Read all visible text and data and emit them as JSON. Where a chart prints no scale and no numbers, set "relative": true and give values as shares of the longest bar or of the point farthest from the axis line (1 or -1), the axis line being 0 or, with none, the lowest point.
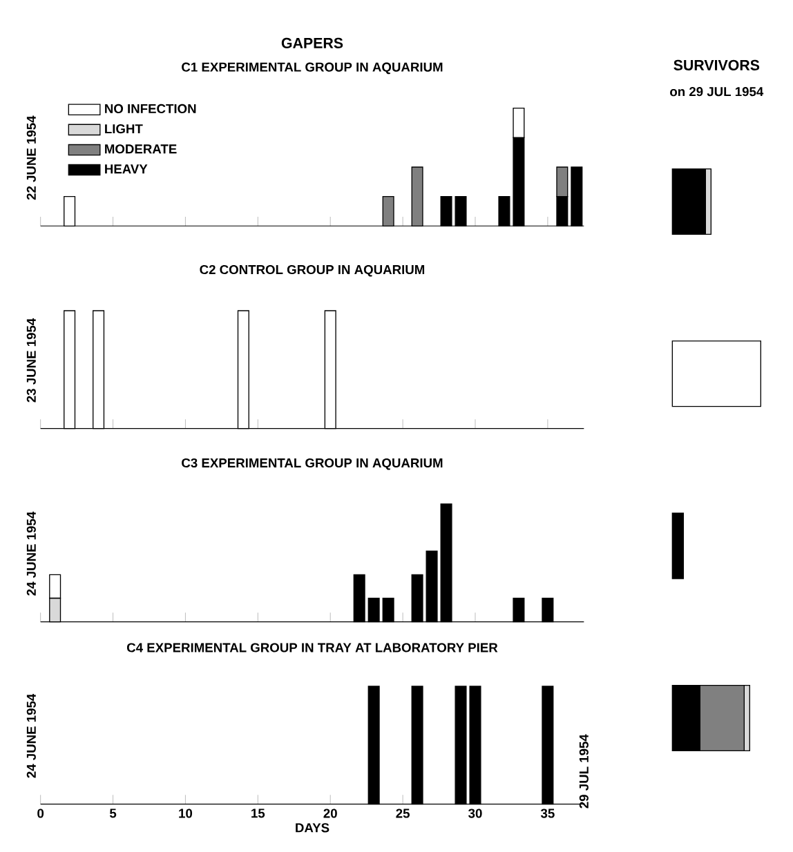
{
  "chart_data": [
    {
      "type": "bar",
      "stacked": true,
      "relative": true,
      "title": "GAPERS",
      "subtitle": "C1 EXPERIMENTAL GROUP IN AQUARIUM",
      "ylabel": "22 JUNE 1954",
      "x": [
        2,
        24,
        26,
        28,
        29,
        32,
        33,
        36,
        37
      ],
      "xlim": [
        0,
        37.5
      ],
      "xticks": [
        0,
        5,
        10,
        15,
        20,
        25,
        30,
        35
      ],
      "tick_labels": false,
      "legend": "top left",
      "series": [
        {
          "name": "HEAVY",
          "color": "#000000",
          "values": [
            null,
            null,
            null,
            0.25,
            0.25,
            0.25,
            0.75,
            0.25,
            0.5
          ]
        },
        {
          "name": "MODERATE",
          "color": "#808080",
          "values": [
            null,
            0.25,
            0.5,
            null,
            null,
            null,
            null,
            0.25,
            null
          ]
        },
        {
          "name": "LIGHT",
          "color": "#d9d9d9",
          "values": [
            null,
            null,
            null,
            null,
            null,
            null,
            null,
            null,
            null
          ]
        },
        {
          "name": "NO INFECTION",
          "color": "#ffffff",
          "values": [
            0.25,
            null,
            null,
            null,
            null,
            null,
            0.25,
            null,
            null
          ]
        }
      ]
    },
    {
      "type": "bar",
      "stacked": true,
      "relative": true,
      "orientation": "horizontal",
      "title": "SURVIVORS",
      "subtitle": "on 29 JUL 1954",
      "categories": [
        null,
        null,
        null,
        null
      ],
      "tick_labels": false,
      "series": [
        {
          "color": "#000000",
          "values": [
            0.375,
            null,
            0.125,
            0.3125
          ]
        },
        {
          "color": "#808080",
          "values": [
            null,
            null,
            null,
            0.5
          ]
        },
        {
          "color": "#d9d9d9",
          "values": [
            0.0625,
            null,
            null,
            0.0625
          ]
        },
        {
          "color": "#ffffff",
          "values": [
            null,
            1,
            null,
            null
          ]
        }
      ]
    },
    {
      "type": "bar",
      "stacked": true,
      "relative": true,
      "title": "C2 CONTROL GROUP IN AQUARIUM",
      "ylabel": "23 JUNE 1954",
      "x": [
        2,
        4,
        14,
        20
      ],
      "xlim": [
        0,
        37.5
      ],
      "xticks": [
        0,
        5,
        10,
        15,
        20,
        25,
        30,
        35
      ],
      "tick_labels": false,
      "series": [
        {
          "color": "#ffffff",
          "values": [
            1,
            1,
            1,
            1
          ]
        }
      ]
    },
    {
      "type": "bar",
      "stacked": true,
      "relative": true,
      "title": "C3 EXPERIMENTAL GROUP IN AQUARIUM",
      "ylabel": "24 JUNE 1954",
      "x": [
        1,
        22,
        23,
        24,
        26,
        27,
        28,
        33,
        35
      ],
      "xlim": [
        0,
        37.5
      ],
      "xticks": [
        0,
        5,
        10,
        15,
        20,
        25,
        30,
        35
      ],
      "tick_labels": false,
      "series": [
        {
          "color": "#000000",
          "values": [
            null,
            0.4,
            0.2,
            0.2,
            0.4,
            0.6,
            1.0,
            0.2,
            0.2
          ]
        },
        {
          "color": "#d9d9d9",
          "values": [
            0.2,
            null,
            null,
            null,
            null,
            null,
            null,
            null,
            null
          ]
        },
        {
          "color": "#ffffff",
          "values": [
            0.2,
            null,
            null,
            null,
            null,
            null,
            null,
            null,
            null
          ]
        }
      ]
    },
    {
      "type": "bar",
      "stacked": true,
      "relative": true,
      "title": "C4 EXPERIMENTAL GROUP IN TRAY AT LABORATORY PIER",
      "ylabel": "24 JUNE 1954",
      "xlabel": "DAYS",
      "x": [
        23,
        26,
        29,
        30,
        35
      ],
      "xlim": [
        0,
        37.5
      ],
      "xticks": [
        0,
        5,
        10,
        15,
        20,
        25,
        30,
        35
      ],
      "tick_labels": "x",
      "annotations": [
        "29 JUL 1954"
      ],
      "series": [
        {
          "color": "#000000",
          "values": [
            1,
            1,
            1,
            1,
            1
          ]
        }
      ]
    }
  ]
}
